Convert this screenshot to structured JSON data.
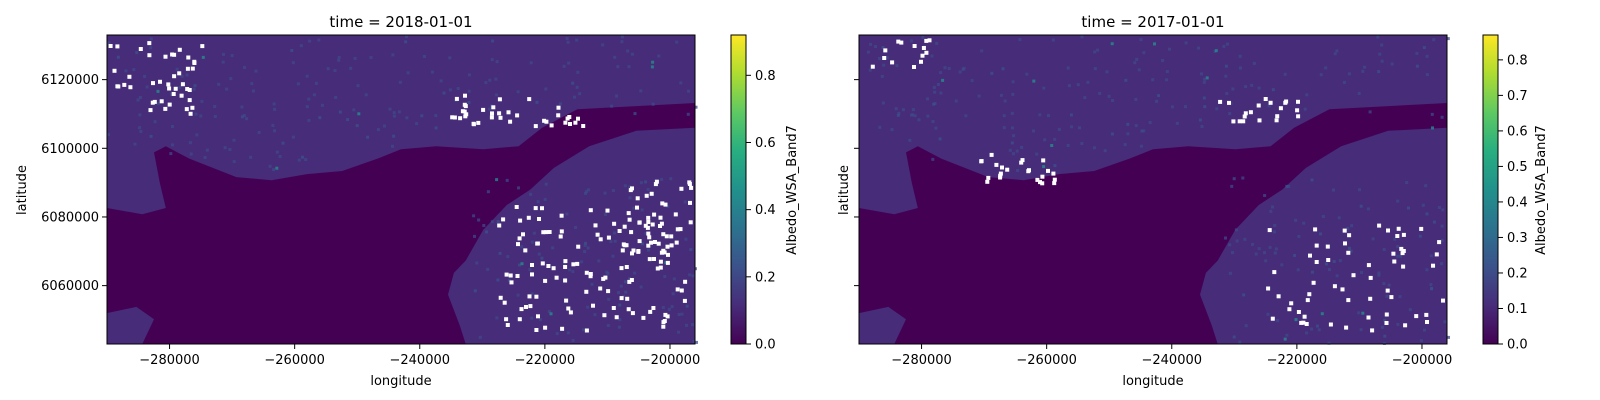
{
  "chart_data": [
    {
      "type": "heatmap",
      "title": "time = 2018-01-01",
      "xlabel": "longitude",
      "ylabel": "latitude",
      "colorbar_label": "Albedo_WSA_Band7",
      "colormap": "viridis",
      "xlim": [
        -290000,
        -196000
      ],
      "ylim": [
        6043000,
        6133000
      ],
      "x_ticks": [
        -280000,
        -260000,
        -240000,
        -220000,
        -200000
      ],
      "x_tick_labels": [
        "−280000",
        "−260000",
        "−240000",
        "−220000",
        "−200000"
      ],
      "y_ticks": [
        6060000,
        6080000,
        6100000,
        6120000
      ],
      "y_tick_labels": [
        "6060000",
        "6080000",
        "6100000",
        "6120000"
      ],
      "cbar_range": [
        0,
        0.92
      ],
      "cbar_ticks": [
        0.0,
        0.2,
        0.4,
        0.6,
        0.8
      ],
      "cbar_tick_labels": [
        "0.0",
        "0.2",
        "0.4",
        "0.6",
        "0.8"
      ],
      "show_y_tick_labels": true
    },
    {
      "type": "heatmap",
      "title": "time = 2017-01-01",
      "xlabel": "longitude",
      "ylabel": "latitude",
      "colorbar_label": "Albedo_WSA_Band7",
      "colormap": "viridis",
      "xlim": [
        -290000,
        -196000
      ],
      "ylim": [
        6043000,
        6133000
      ],
      "x_ticks": [
        -280000,
        -260000,
        -240000,
        -220000,
        -200000
      ],
      "x_tick_labels": [
        "−280000",
        "−260000",
        "−240000",
        "−220000",
        "−200000"
      ],
      "y_ticks": [
        6060000,
        6080000,
        6100000,
        6120000
      ],
      "y_tick_labels": [],
      "cbar_range": [
        0,
        0.87
      ],
      "cbar_ticks": [
        0.0,
        0.1,
        0.2,
        0.3,
        0.4,
        0.5,
        0.6,
        0.7,
        0.8
      ],
      "cbar_tick_labels": [
        "0.0",
        "0.1",
        "0.2",
        "0.3",
        "0.4",
        "0.5",
        "0.6",
        "0.7",
        "0.8"
      ],
      "show_y_tick_labels": false
    }
  ],
  "colors": {
    "sea": "#440154",
    "land_low": "#472c7a",
    "land_mid": "#3b528b",
    "cloud_gap": "#ffffff"
  }
}
